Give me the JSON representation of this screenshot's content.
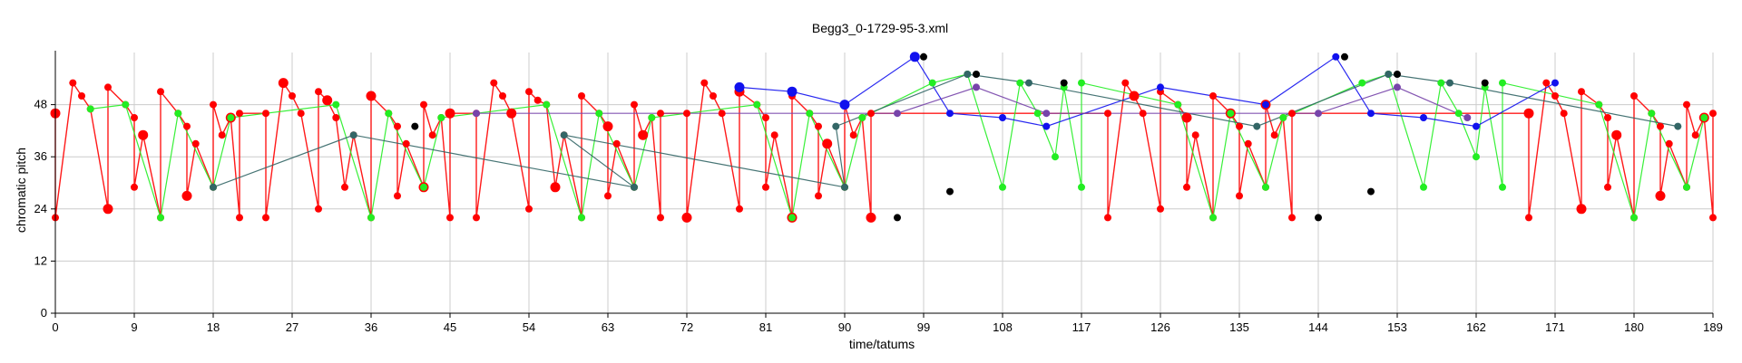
{
  "chart_data": {
    "type": "scatter",
    "title": "Begg3_0-1729-95-3.xml",
    "xlabel": "time/tatums",
    "ylabel": "chromatic pitch",
    "xlim": [
      0,
      189
    ],
    "ylim": [
      0,
      60
    ],
    "xticks": [
      0,
      9,
      18,
      27,
      36,
      45,
      54,
      63,
      72,
      81,
      90,
      99,
      108,
      117,
      126,
      135,
      144,
      153,
      162,
      171,
      180,
      189
    ],
    "yticks": [
      0,
      12,
      24,
      36,
      48
    ],
    "grid": true,
    "colors": {
      "red": "#ff0000",
      "green": "#22ee22",
      "blue": "#1111ee",
      "teal": "#336666",
      "purple": "#7744aa",
      "black": "#000000",
      "grid": "#cccccc"
    },
    "series": [
      {
        "color": "red",
        "points": [
          [
            0,
            46
          ],
          [
            0,
            22
          ],
          [
            2,
            53
          ],
          [
            3,
            50
          ],
          [
            4,
            47
          ],
          [
            6,
            24
          ],
          [
            6,
            52
          ],
          [
            8,
            48
          ],
          [
            9,
            45
          ],
          [
            9,
            29
          ],
          [
            10,
            41
          ],
          [
            12,
            22
          ],
          [
            12,
            51
          ],
          [
            14,
            46
          ],
          [
            15,
            43
          ],
          [
            15,
            27
          ],
          [
            16,
            39
          ],
          [
            18,
            29
          ],
          [
            18,
            48
          ],
          [
            19,
            41
          ],
          [
            20,
            45
          ],
          [
            21,
            22
          ],
          [
            21,
            46
          ],
          [
            24,
            46
          ],
          [
            24,
            22
          ],
          [
            26,
            53
          ],
          [
            27,
            50
          ],
          [
            28,
            46
          ],
          [
            30,
            24
          ],
          [
            30,
            51
          ],
          [
            31,
            49
          ],
          [
            32,
            45
          ],
          [
            33,
            29
          ],
          [
            34,
            41
          ],
          [
            36,
            22
          ],
          [
            36,
            50
          ],
          [
            38,
            46
          ],
          [
            39,
            43
          ],
          [
            39,
            27
          ],
          [
            40,
            39
          ],
          [
            42,
            29
          ],
          [
            42,
            48
          ],
          [
            43,
            41
          ],
          [
            44,
            45
          ],
          [
            45,
            22
          ],
          [
            45,
            46
          ],
          [
            48,
            46
          ],
          [
            48,
            22
          ],
          [
            50,
            53
          ],
          [
            51,
            50
          ],
          [
            52,
            46
          ],
          [
            54,
            24
          ],
          [
            54,
            51
          ],
          [
            55,
            49
          ],
          [
            56,
            48
          ],
          [
            57,
            29
          ],
          [
            58,
            41
          ],
          [
            60,
            22
          ],
          [
            60,
            50
          ],
          [
            62,
            46
          ],
          [
            63,
            43
          ],
          [
            63,
            27
          ],
          [
            64,
            39
          ],
          [
            66,
            29
          ],
          [
            66,
            48
          ],
          [
            67,
            41
          ],
          [
            68,
            45
          ],
          [
            69,
            22
          ],
          [
            69,
            46
          ],
          [
            72,
            46
          ],
          [
            72,
            22
          ],
          [
            74,
            53
          ],
          [
            75,
            50
          ],
          [
            76,
            46
          ],
          [
            78,
            24
          ],
          [
            78,
            51
          ],
          [
            80,
            48
          ],
          [
            81,
            45
          ],
          [
            81,
            29
          ],
          [
            82,
            41
          ],
          [
            84,
            22
          ],
          [
            84,
            50
          ],
          [
            86,
            46
          ],
          [
            87,
            43
          ],
          [
            87,
            27
          ],
          [
            88,
            39
          ],
          [
            90,
            29
          ],
          [
            90,
            48
          ],
          [
            91,
            41
          ],
          [
            92,
            45
          ],
          [
            93,
            22
          ],
          [
            93,
            46
          ],
          [
            120,
            46
          ],
          [
            120,
            22
          ],
          [
            122,
            53
          ],
          [
            123,
            50
          ],
          [
            124,
            46
          ],
          [
            126,
            24
          ],
          [
            126,
            51
          ],
          [
            128,
            48
          ],
          [
            129,
            45
          ],
          [
            129,
            29
          ],
          [
            130,
            41
          ],
          [
            132,
            22
          ],
          [
            132,
            50
          ],
          [
            134,
            46
          ],
          [
            135,
            43
          ],
          [
            135,
            27
          ],
          [
            136,
            39
          ],
          [
            138,
            29
          ],
          [
            138,
            48
          ],
          [
            139,
            41
          ],
          [
            140,
            45
          ],
          [
            141,
            22
          ],
          [
            141,
            46
          ],
          [
            168,
            46
          ],
          [
            168,
            22
          ],
          [
            170,
            53
          ],
          [
            171,
            50
          ],
          [
            172,
            46
          ],
          [
            174,
            24
          ],
          [
            174,
            51
          ],
          [
            176,
            48
          ],
          [
            177,
            45
          ],
          [
            177,
            29
          ],
          [
            178,
            41
          ],
          [
            180,
            22
          ],
          [
            180,
            50
          ],
          [
            182,
            46
          ],
          [
            183,
            43
          ],
          [
            183,
            27
          ],
          [
            184,
            39
          ],
          [
            186,
            29
          ],
          [
            186,
            48
          ],
          [
            187,
            41
          ],
          [
            188,
            45
          ],
          [
            189,
            22
          ],
          [
            189,
            46
          ]
        ]
      },
      {
        "color": "green",
        "points": [
          [
            4,
            47
          ],
          [
            8,
            48
          ],
          [
            12,
            22
          ],
          [
            14,
            46
          ],
          [
            18,
            29
          ],
          [
            20,
            45
          ],
          [
            32,
            48
          ],
          [
            36,
            22
          ],
          [
            38,
            46
          ],
          [
            42,
            29
          ],
          [
            44,
            45
          ],
          [
            56,
            48
          ],
          [
            60,
            22
          ],
          [
            62,
            46
          ],
          [
            66,
            29
          ],
          [
            68,
            45
          ],
          [
            80,
            48
          ],
          [
            84,
            22
          ],
          [
            86,
            46
          ],
          [
            90,
            29
          ],
          [
            92,
            45
          ],
          [
            100,
            53
          ],
          [
            104,
            55
          ],
          [
            108,
            29
          ],
          [
            110,
            53
          ],
          [
            112,
            46
          ],
          [
            114,
            36
          ],
          [
            115,
            52
          ],
          [
            117,
            29
          ],
          [
            117,
            53
          ],
          [
            128,
            48
          ],
          [
            132,
            22
          ],
          [
            134,
            46
          ],
          [
            138,
            29
          ],
          [
            140,
            45
          ],
          [
            149,
            53
          ],
          [
            152,
            55
          ],
          [
            156,
            29
          ],
          [
            158,
            53
          ],
          [
            160,
            46
          ],
          [
            162,
            36
          ],
          [
            163,
            52
          ],
          [
            165,
            29
          ],
          [
            165,
            53
          ],
          [
            176,
            48
          ],
          [
            180,
            22
          ],
          [
            182,
            46
          ],
          [
            186,
            29
          ],
          [
            188,
            45
          ]
        ]
      },
      {
        "color": "blue",
        "points": [
          [
            78,
            52
          ],
          [
            84,
            51
          ],
          [
            90,
            48
          ],
          [
            98,
            59
          ],
          [
            102,
            46
          ],
          [
            108,
            45
          ],
          [
            113,
            43
          ],
          [
            126,
            52
          ],
          [
            138,
            48
          ],
          [
            146,
            59
          ],
          [
            150,
            46
          ],
          [
            156,
            45
          ],
          [
            162,
            43
          ],
          [
            171,
            53
          ]
        ]
      },
      {
        "color": "teal",
        "points": [
          [
            18,
            29
          ],
          [
            34,
            41
          ],
          [
            66,
            29
          ],
          [
            58,
            41
          ],
          [
            90,
            29
          ],
          [
            89,
            43
          ],
          [
            104,
            55
          ],
          [
            111,
            53
          ],
          [
            137,
            43
          ],
          [
            152,
            55
          ],
          [
            159,
            53
          ],
          [
            185,
            43
          ]
        ]
      },
      {
        "color": "purple",
        "points": [
          [
            48,
            46
          ],
          [
            96,
            46
          ],
          [
            105,
            52
          ],
          [
            113,
            46
          ],
          [
            144,
            46
          ],
          [
            153,
            52
          ],
          [
            161,
            45
          ]
        ]
      },
      {
        "color": "black",
        "points": [
          [
            41,
            43
          ],
          [
            96,
            22
          ],
          [
            99,
            59
          ],
          [
            102,
            28
          ],
          [
            105,
            55
          ],
          [
            115,
            53
          ],
          [
            144,
            22
          ],
          [
            147,
            59
          ],
          [
            150,
            28
          ],
          [
            153,
            55
          ],
          [
            163,
            53
          ]
        ]
      }
    ]
  }
}
